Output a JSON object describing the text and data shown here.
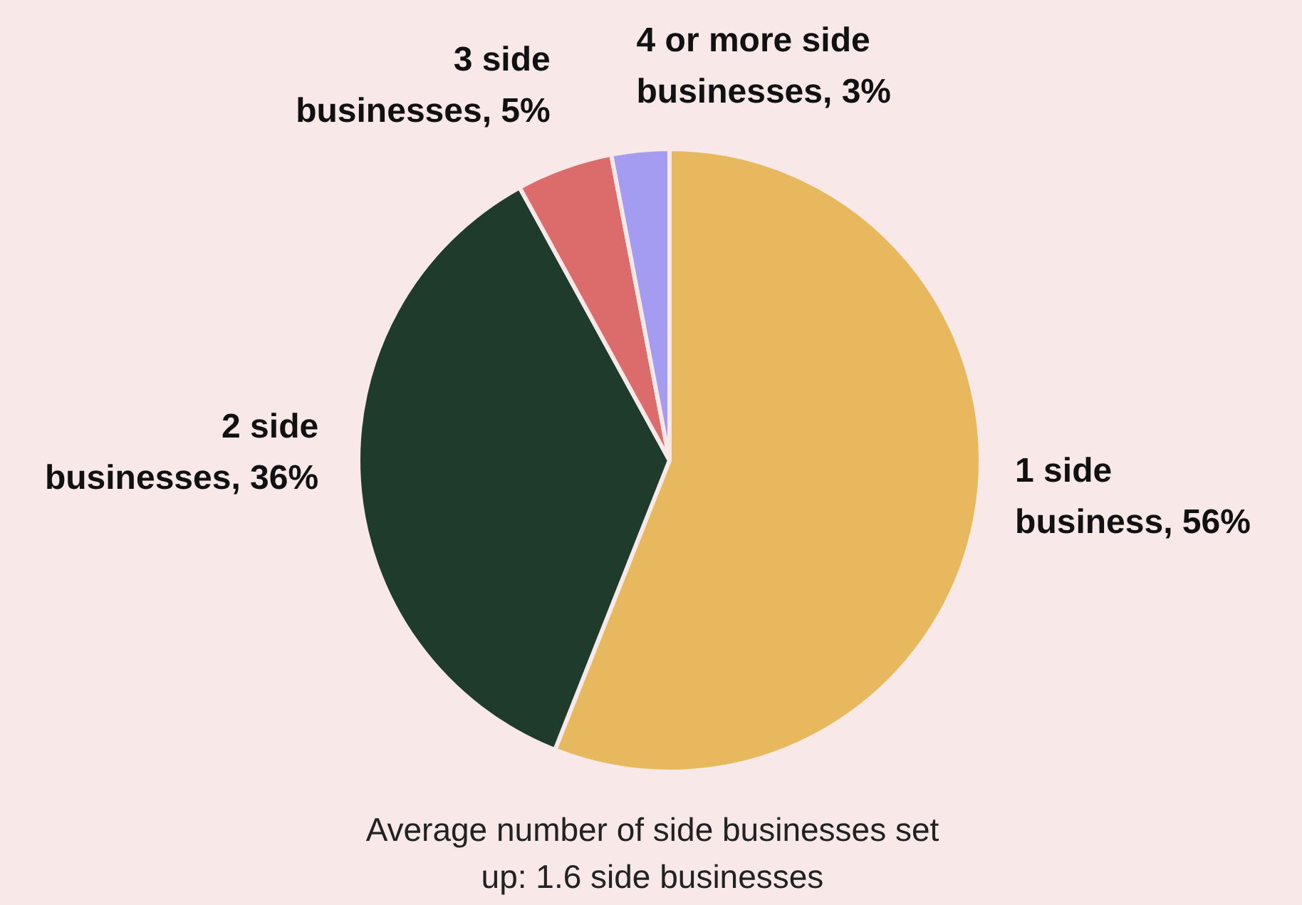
{
  "chart_data": {
    "type": "pie",
    "categories": [
      "1 side business, 56%",
      "2 side businesses, 36%",
      "3 side businesses, 5%",
      "4 or more side businesses, 3%"
    ],
    "values": [
      56,
      36,
      5,
      3
    ],
    "colors": [
      "#e8b85e",
      "#1f3b2c",
      "#dc6b6b",
      "#a39cf0"
    ],
    "legend": false,
    "annotations": [
      "Average number of side businesses set up: 1.6 side businesses"
    ]
  }
}
